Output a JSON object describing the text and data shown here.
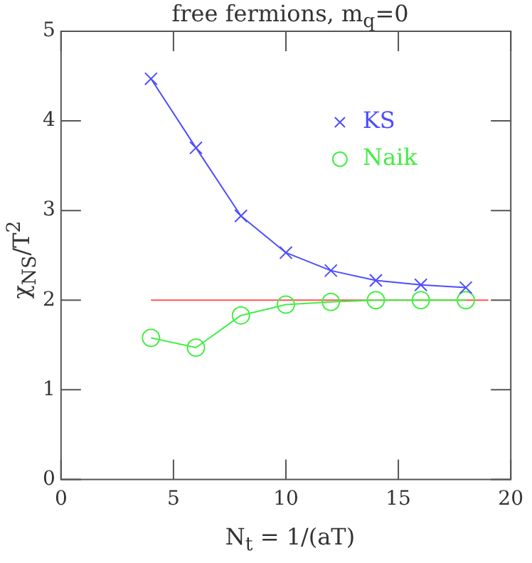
{
  "chart_data": {
    "type": "line",
    "title": "free fermions, m$_{q}$=0",
    "xlabel": "N$_{t}$ = 1/(aT)",
    "ylabel": "χ$_{NS}$/T$^{2}$",
    "xlim": [
      0,
      20
    ],
    "xticks": [
      0,
      5,
      10,
      15,
      20
    ],
    "ylim": [
      0,
      5
    ],
    "yticks": [
      0,
      1,
      2,
      3,
      4,
      5
    ],
    "grid": false,
    "legend": "top right",
    "series": [
      {
        "name": "KS",
        "color": "#4d4dff",
        "marker": "cross",
        "x": [
          4,
          6,
          8,
          10,
          12,
          14,
          16,
          18
        ],
        "values": [
          4.47,
          3.7,
          2.94,
          2.53,
          2.33,
          2.22,
          2.17,
          2.14
        ]
      },
      {
        "name": "Naik",
        "color": "#44ee44",
        "marker": "circle",
        "x": [
          4,
          6,
          8,
          10,
          12,
          14,
          16,
          18
        ],
        "values": [
          1.58,
          1.47,
          1.83,
          1.95,
          1.98,
          2.0,
          2.0,
          2.0
        ]
      },
      {
        "color": "#ff5555",
        "marker": "none",
        "x": [
          4,
          19
        ],
        "values": [
          2,
          2
        ]
      }
    ]
  }
}
